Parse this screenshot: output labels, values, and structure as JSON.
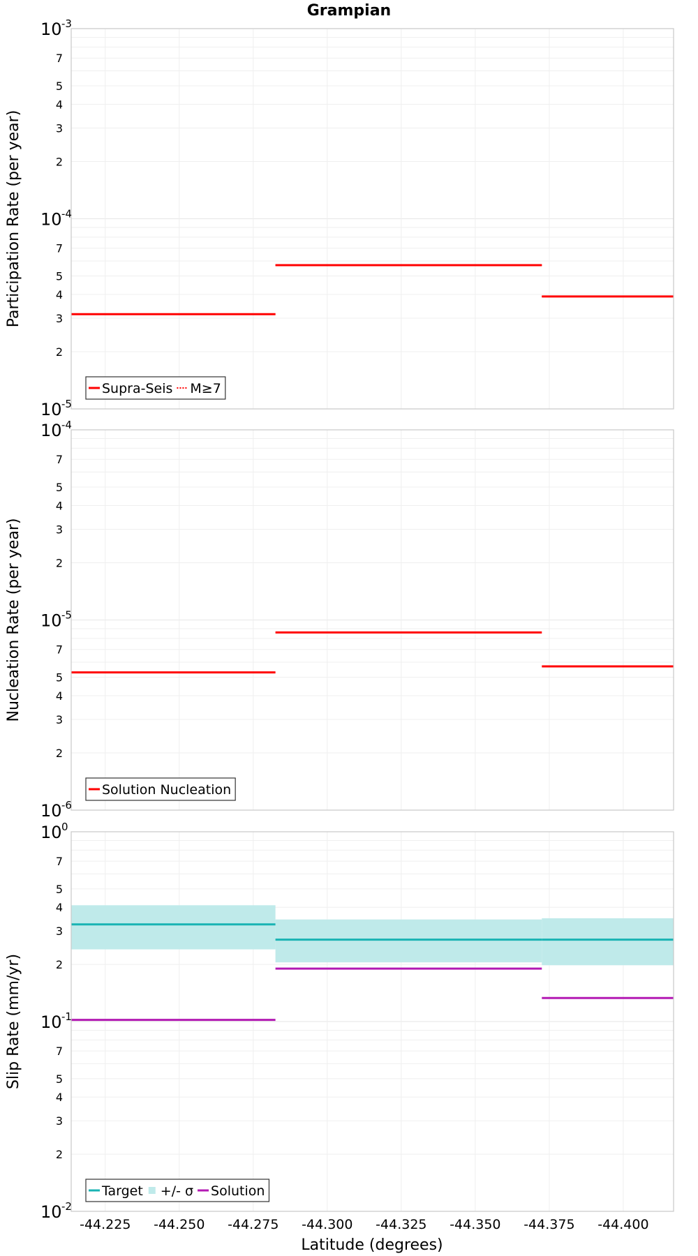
{
  "title": "Grampian",
  "xlabel": "Latitude (degrees)",
  "x_ticks": [
    "-44.225",
    "-44.250",
    "-44.275",
    "-44.300",
    "-44.325",
    "-44.350",
    "-44.375",
    "-44.400"
  ],
  "chart_data": [
    {
      "type": "line",
      "ylabel": "Participation Rate (per year)",
      "yscale": "log",
      "ylim": [
        1e-05,
        0.001
      ],
      "xlim": [
        -44.2135,
        -44.417
      ],
      "grid": true,
      "legend_position": "bottom-left",
      "legend": [
        "Supra-Seis",
        "M≥7"
      ],
      "series": [
        {
          "name": "Supra-Seis",
          "style": "solid",
          "color": "#ff0000",
          "segments": [
            {
              "x": [
                -44.2135,
                -44.2825
              ],
              "y": 3.15e-05
            },
            {
              "x": [
                -44.2825,
                -44.3725
              ],
              "y": 5.7e-05
            },
            {
              "x": [
                -44.3725,
                -44.417
              ],
              "y": 3.9e-05
            }
          ]
        },
        {
          "name": "M≥7",
          "style": "dotted",
          "color": "#ff0000",
          "segments": [
            {
              "x": [
                -44.2135,
                -44.2825
              ],
              "y": 3.15e-05
            },
            {
              "x": [
                -44.2825,
                -44.3725
              ],
              "y": 5.7e-05
            },
            {
              "x": [
                -44.3725,
                -44.417
              ],
              "y": 3.9e-05
            }
          ]
        }
      ]
    },
    {
      "type": "line",
      "ylabel": "Nucleation Rate (per year)",
      "yscale": "log",
      "ylim": [
        1e-06,
        0.0001
      ],
      "xlim": [
        -44.2135,
        -44.417
      ],
      "grid": true,
      "legend_position": "bottom-left",
      "legend": [
        "Solution Nucleation"
      ],
      "series": [
        {
          "name": "Solution Nucleation",
          "style": "solid",
          "color": "#ff0000",
          "segments": [
            {
              "x": [
                -44.2135,
                -44.2825
              ],
              "y": 5.3e-06
            },
            {
              "x": [
                -44.2825,
                -44.3725
              ],
              "y": 8.6e-06
            },
            {
              "x": [
                -44.3725,
                -44.417
              ],
              "y": 5.7e-06
            }
          ]
        }
      ]
    },
    {
      "type": "line",
      "ylabel": "Slip Rate (mm/yr)",
      "yscale": "log",
      "ylim": [
        0.01,
        1
      ],
      "xlim": [
        -44.2135,
        -44.417
      ],
      "grid": true,
      "legend_position": "bottom-left",
      "legend": [
        "Target",
        "+/- σ",
        "Solution"
      ],
      "bands": [
        {
          "name": "+/- σ",
          "color": "#bfeaea",
          "segments": [
            {
              "x": [
                -44.2135,
                -44.2825
              ],
              "low": 0.24,
              "high": 0.41
            },
            {
              "x": [
                -44.2825,
                -44.3725
              ],
              "low": 0.205,
              "high": 0.345
            },
            {
              "x": [
                -44.3725,
                -44.417
              ],
              "low": 0.198,
              "high": 0.35
            }
          ]
        }
      ],
      "series": [
        {
          "name": "Target",
          "style": "solid",
          "color": "#19b3b3",
          "segments": [
            {
              "x": [
                -44.2135,
                -44.2825
              ],
              "y": 0.325
            },
            {
              "x": [
                -44.2825,
                -44.3725
              ],
              "y": 0.27
            },
            {
              "x": [
                -44.3725,
                -44.417
              ],
              "y": 0.27
            }
          ]
        },
        {
          "name": "Solution",
          "style": "solid",
          "color": "#b31ab3",
          "segments": [
            {
              "x": [
                -44.2135,
                -44.2825
              ],
              "y": 0.102
            },
            {
              "x": [
                -44.2825,
                -44.3725
              ],
              "y": 0.19
            },
            {
              "x": [
                -44.3725,
                -44.417
              ],
              "y": 0.133
            }
          ]
        }
      ]
    }
  ]
}
